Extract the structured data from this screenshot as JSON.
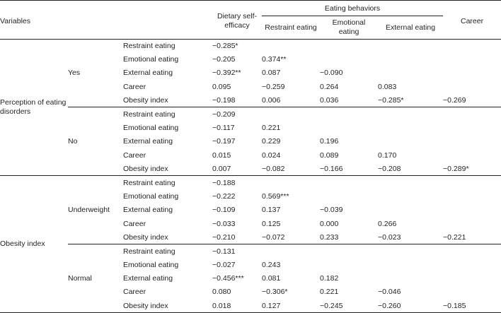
{
  "header": {
    "variables": "Variables",
    "dietary_self_efficacy": "Dietary self-efficacy",
    "eating_behaviors": "Eating behaviors",
    "restraint_eating": "Restraint eating",
    "emotional_eating": "Emotional eating",
    "external_eating": "External eating",
    "career": "Career"
  },
  "groups": [
    {
      "variable": "Perception of eating disorders",
      "subgroups": [
        {
          "label": "Yes",
          "rows": [
            {
              "name": "Restraint eating",
              "des": "−0.285*",
              "re": "",
              "em": "",
              "ex": "",
              "ca": ""
            },
            {
              "name": "Emotional eating",
              "des": "−0.205",
              "re": "0.374**",
              "em": "",
              "ex": "",
              "ca": ""
            },
            {
              "name": "External eating",
              "des": "−0.392**",
              "re": "0.087",
              "em": "−0.090",
              "ex": "",
              "ca": ""
            },
            {
              "name": "Career",
              "des": "0.095",
              "re": "−0.259",
              "em": "0.264",
              "ex": "0.083",
              "ca": ""
            },
            {
              "name": "Obesity index",
              "des": "−0.198",
              "re": "0.006",
              "em": "0.036",
              "ex": "−0.285*",
              "ca": "−0.269"
            }
          ]
        },
        {
          "label": "No",
          "rows": [
            {
              "name": "Restraint eating",
              "des": "−0.209",
              "re": "",
              "em": "",
              "ex": "",
              "ca": ""
            },
            {
              "name": "Emotional eating",
              "des": "−0.117",
              "re": "0.221",
              "em": "",
              "ex": "",
              "ca": ""
            },
            {
              "name": "External eating",
              "des": "−0.197",
              "re": "0.229",
              "em": "0.196",
              "ex": "",
              "ca": ""
            },
            {
              "name": "Career",
              "des": "0.015",
              "re": "0.024",
              "em": "0.089",
              "ex": "0.170",
              "ca": ""
            },
            {
              "name": "Obesity index",
              "des": "0.007",
              "re": "−0.082",
              "em": "−0.166",
              "ex": "−0.208",
              "ca": "−0.289*"
            }
          ]
        }
      ]
    },
    {
      "variable": "Obesity index",
      "subgroups": [
        {
          "label": "Underweight",
          "rows": [
            {
              "name": "Restraint eating",
              "des": "−0.188",
              "re": "",
              "em": "",
              "ex": "",
              "ca": ""
            },
            {
              "name": "Emotional eating",
              "des": "−0.222",
              "re": "0.569***",
              "em": "",
              "ex": "",
              "ca": ""
            },
            {
              "name": "External eating",
              "des": "−0.109",
              "re": "0.137",
              "em": "−0.039",
              "ex": "",
              "ca": ""
            },
            {
              "name": "Career",
              "des": "−0.033",
              "re": "0.125",
              "em": "0.000",
              "ex": "0.266",
              "ca": ""
            },
            {
              "name": "Obesity index",
              "des": "−0.210",
              "re": "−0.072",
              "em": "0.233",
              "ex": "−0.023",
              "ca": "−0.221"
            }
          ]
        },
        {
          "label": "Normal",
          "rows": [
            {
              "name": "Restraint eating",
              "des": "−0.131",
              "re": "",
              "em": "",
              "ex": "",
              "ca": ""
            },
            {
              "name": "Emotional eating",
              "des": "−0.027",
              "re": "0.243",
              "em": "",
              "ex": "",
              "ca": ""
            },
            {
              "name": "External eating",
              "des": "−0.456***",
              "re": "0.081",
              "em": "0.182",
              "ex": "",
              "ca": ""
            },
            {
              "name": "Career",
              "des": "0.080",
              "re": "−0.306*",
              "em": "0.221",
              "ex": "−0.046",
              "ca": ""
            },
            {
              "name": "Obesity index",
              "des": "0.018",
              "re": "0.127",
              "em": "−0.245",
              "ex": "−0.260",
              "ca": "−0.185"
            }
          ]
        }
      ]
    }
  ]
}
